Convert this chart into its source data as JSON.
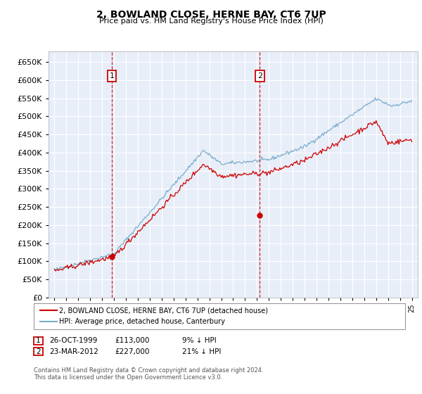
{
  "title": "2, BOWLAND CLOSE, HERNE BAY, CT6 7UP",
  "subtitle": "Price paid vs. HM Land Registry's House Price Index (HPI)",
  "legend_line1": "2, BOWLAND CLOSE, HERNE BAY, CT6 7UP (detached house)",
  "legend_line2": "HPI: Average price, detached house, Canterbury",
  "sale1_date_label": "26-OCT-1999",
  "sale1_price": 113000,
  "sale1_pct": "9% ↓ HPI",
  "sale2_date_label": "23-MAR-2012",
  "sale2_price": 227000,
  "sale2_pct": "21% ↓ HPI",
  "sale1_x": 1999.82,
  "sale2_x": 2012.23,
  "footer": "Contains HM Land Registry data © Crown copyright and database right 2024.\nThis data is licensed under the Open Government Licence v3.0.",
  "ylim": [
    0,
    680000
  ],
  "yticks": [
    0,
    50000,
    100000,
    150000,
    200000,
    250000,
    300000,
    350000,
    400000,
    450000,
    500000,
    550000,
    600000,
    650000
  ],
  "background_color": "#e8eef8",
  "red_color": "#cc0000",
  "blue_color": "#7aadcc",
  "grid_color": "#ffffff",
  "xlim_left": 1994.5,
  "xlim_right": 2025.5
}
